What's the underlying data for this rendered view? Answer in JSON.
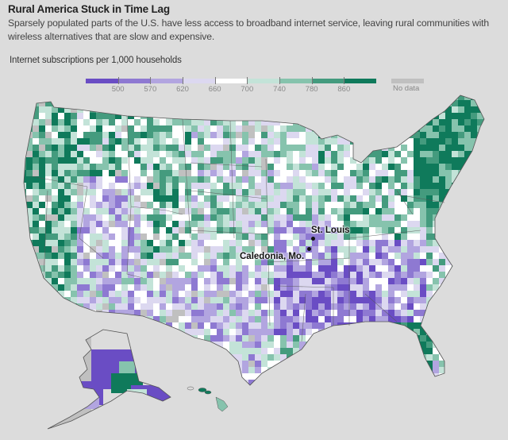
{
  "header": {
    "title": "Rural America Stuck in Time Lag",
    "subtitle": "Sparsely populated parts of the U.S. have less access to broadband internet service, leaving rural communities with wireless alternatives that are slow and expensive."
  },
  "legend": {
    "title": "Internet subscriptions per 1,000 households",
    "ticks": [
      "500",
      "570",
      "620",
      "660",
      "700",
      "740",
      "780",
      "860"
    ],
    "colors": [
      "#6a4dc4",
      "#8e79d2",
      "#b2a5e0",
      "#dcd8f0",
      "#ffffff",
      "#c3e3d8",
      "#86c3ad",
      "#449b7e",
      "#0f7a5b"
    ],
    "no_data_label": "No data",
    "no_data_color": "#c0c0c0"
  },
  "map": {
    "labels": {
      "st_louis": "St. Louis",
      "caledonia": "Caledonia, Mo."
    },
    "background_color": "#dcdcdc",
    "border_color": "#555555"
  },
  "chart_data": {
    "type": "heatmap",
    "title": "Rural America Stuck in Time Lag",
    "subtitle": "Sparsely populated parts of the U.S. have less access to broadband internet service, leaving rural communities with wireless alternatives that are slow and expensive.",
    "measure": "Internet subscriptions per 1,000 households",
    "geography": "U.S. counties (choropleth)",
    "bins": [
      {
        "range": "< 500",
        "color": "#6a4dc4"
      },
      {
        "range": "500–570",
        "color": "#8e79d2"
      },
      {
        "range": "570–620",
        "color": "#b2a5e0"
      },
      {
        "range": "620–660",
        "color": "#dcd8f0"
      },
      {
        "range": "660–700",
        "color": "#ffffff"
      },
      {
        "range": "700–740",
        "color": "#c3e3d8"
      },
      {
        "range": "740–780",
        "color": "#86c3ad"
      },
      {
        "range": "780–860",
        "color": "#449b7e"
      },
      {
        "range": "> 860",
        "color": "#0f7a5b"
      },
      {
        "range": "No data",
        "color": "#c0c0c0"
      }
    ],
    "annotations": [
      "St. Louis",
      "Caledonia, Mo."
    ],
    "regional_pattern": {
      "Northeast": "mostly 780+ (dark green)",
      "Pacific coast": "mostly 740+ (green)",
      "Deep South (MS, AL, AR, LA)": "mostly below 570 (purple)",
      "Florida": "mostly 860+ (dark green)",
      "Alaska": "mixed: below 500 and no data",
      "Hawaii": "740–780"
    }
  }
}
